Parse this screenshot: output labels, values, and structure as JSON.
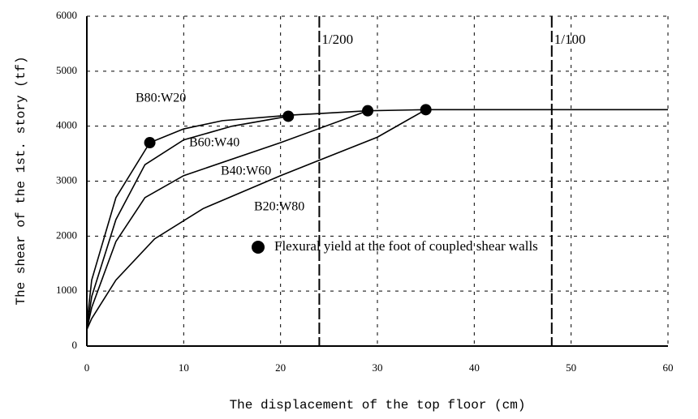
{
  "chart_data": {
    "type": "line",
    "x_label": "The displacement of the top floor  (cm)",
    "y_label": "The shear of the 1st. story  (tf)",
    "xlim": [
      0,
      60
    ],
    "xticks": [
      0,
      10,
      20,
      30,
      40,
      50,
      60
    ],
    "ylim": [
      0,
      6000
    ],
    "yticks": [
      0,
      1000,
      2000,
      3000,
      4000,
      5000,
      6000
    ],
    "grid": true,
    "series": [
      {
        "name": "B80:W20",
        "color": "#000000",
        "x": [
          0,
          0.5,
          3,
          6.5,
          10,
          14,
          21,
          29,
          35,
          60
        ],
        "values": [
          400,
          1200,
          2700,
          3700,
          3950,
          4100,
          4200,
          4280,
          4300,
          4300
        ]
      },
      {
        "name": "B60:W40",
        "color": "#000000",
        "x": [
          0,
          0.5,
          3,
          6,
          10,
          15,
          20.8
        ],
        "values": [
          300,
          900,
          2300,
          3300,
          3750,
          4000,
          4180
        ]
      },
      {
        "name": "B40:W60",
        "color": "#000000",
        "x": [
          0,
          0.5,
          3,
          6,
          10,
          20,
          29
        ],
        "values": [
          300,
          700,
          1900,
          2700,
          3100,
          3700,
          4280
        ]
      },
      {
        "name": "B20:W80",
        "color": "#000000",
        "x": [
          0,
          0.5,
          3,
          7,
          12,
          20,
          30,
          35
        ],
        "values": [
          300,
          500,
          1200,
          1950,
          2500,
          3100,
          3800,
          4300
        ]
      }
    ],
    "yield_points": {
      "x": [
        6.5,
        20.8,
        29,
        35
      ],
      "values": [
        3700,
        4180,
        4280,
        4300
      ]
    },
    "legend_text": "Flexural yield at the foot of coupled shear walls",
    "drift_lines": [
      {
        "x": 24,
        "label": "1/200"
      },
      {
        "x": 48,
        "label": "1/100"
      }
    ]
  }
}
